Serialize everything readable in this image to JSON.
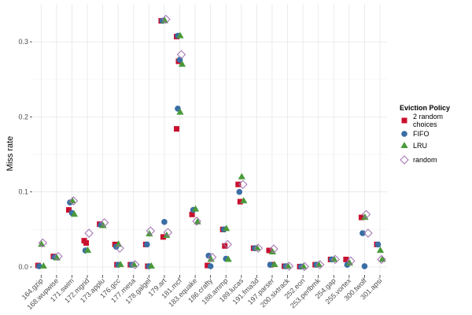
{
  "chart_data": {
    "type": "scatter",
    "title": "",
    "xlabel": "",
    "ylabel": "Miss rate",
    "ylim": [
      -0.007,
      0.345
    ],
    "yticks": [
      "0.0",
      "0.1",
      "0.2",
      "0.3"
    ],
    "grid": true,
    "legend": {
      "title": "Eviction Policy",
      "placement": "right"
    },
    "categories": [
      "164.gzip",
      "168.wupwise",
      "171.swim",
      "172.mgrid",
      "173.applu",
      "176.gcc",
      "177.mesa",
      "178.galgel",
      "179.art",
      "181.mcf",
      "183.equake",
      "186.crafty",
      "188.ammp",
      "189.lucas",
      "191.fma3d",
      "197.parser",
      "200.sixtrack",
      "252.eon",
      "253.perlbmk",
      "254.gap",
      "255.vortex",
      "300.twolf",
      "301.apsi"
    ],
    "series": [
      {
        "name": "2 random choices",
        "shape": "square",
        "color": "#c8102e",
        "values": [
          [
            0.002
          ],
          [
            0.014
          ],
          [
            0.076
          ],
          [
            0.035,
            0.032
          ],
          [
            0.057
          ],
          [
            0.03,
            0.003
          ],
          [
            0.003
          ],
          [
            0.03,
            0.001
          ],
          [
            0.328,
            0.04
          ],
          [
            0.307,
            0.274,
            0.184
          ],
          [
            0.07
          ],
          [
            0.002
          ],
          [
            0.05,
            0.028
          ],
          [
            0.11,
            0.087
          ],
          [
            0.025
          ],
          [
            0.022,
            0.003
          ],
          [
            0.001
          ],
          [
            0.0005
          ],
          [
            0.003
          ],
          [
            0.01
          ],
          [
            0.01
          ],
          [
            0.066
          ],
          [
            0.03
          ]
        ]
      },
      {
        "name": "FIFO",
        "shape": "circle",
        "color": "#3a6ea5",
        "values": [
          [
            0.001
          ],
          [
            0.013
          ],
          [
            0.086,
            0.072
          ],
          [
            0.022
          ],
          [
            0.056
          ],
          [
            0.027,
            0.003
          ],
          [
            0.003
          ],
          [
            0.03,
            0.001
          ],
          [
            0.328,
            0.06
          ],
          [
            0.308,
            0.276,
            0.211
          ],
          [
            0.076
          ],
          [
            0.015,
            0.001
          ],
          [
            0.05,
            0.011
          ],
          [
            0.1
          ],
          [
            0.025
          ],
          [
            0.003
          ],
          [
            0.001
          ],
          [
            0.0005
          ],
          [
            0.003
          ],
          [
            0.01
          ],
          [
            0.003
          ],
          [
            0.045,
            0.001
          ],
          [
            0.03
          ]
        ]
      },
      {
        "name": "LRU",
        "shape": "triangle",
        "color": "#4a9a3a",
        "values": [
          [
            0.03,
            0.001
          ],
          [
            0.012
          ],
          [
            0.088,
            0.07
          ],
          [
            0.022
          ],
          [
            0.055
          ],
          [
            0.03,
            0.003
          ],
          [
            0.003
          ],
          [
            0.044,
            0.001
          ],
          [
            0.328,
            0.042
          ],
          [
            0.308,
            0.27,
            0.206
          ],
          [
            0.077,
            0.06
          ],
          [
            0.01
          ],
          [
            0.051,
            0.01
          ],
          [
            0.12,
            0.088
          ],
          [
            0.025
          ],
          [
            0.02,
            0.003
          ],
          [
            0.001
          ],
          [
            0.0005
          ],
          [
            0.003
          ],
          [
            0.01
          ],
          [
            0.005
          ],
          [
            0.066
          ],
          [
            0.022,
            0.01
          ]
        ]
      },
      {
        "name": "random",
        "shape": "diamond",
        "color": "#a070b0",
        "values": [
          [
            0.032
          ],
          [
            0.014
          ],
          [
            0.088
          ],
          [
            0.045
          ],
          [
            0.059
          ],
          [
            0.025
          ],
          [
            0.003
          ],
          [
            0.048
          ],
          [
            0.33,
            0.046
          ],
          [
            0.283
          ],
          [
            0.061
          ],
          [
            0.013
          ],
          [
            0.03
          ],
          [
            0.11
          ],
          [
            0.025
          ],
          [
            0.024
          ],
          [
            0.001
          ],
          [
            0.0005
          ],
          [
            0.003
          ],
          [
            0.01
          ],
          [
            0.008
          ],
          [
            0.07,
            0.045
          ],
          [
            0.01
          ]
        ]
      }
    ]
  }
}
